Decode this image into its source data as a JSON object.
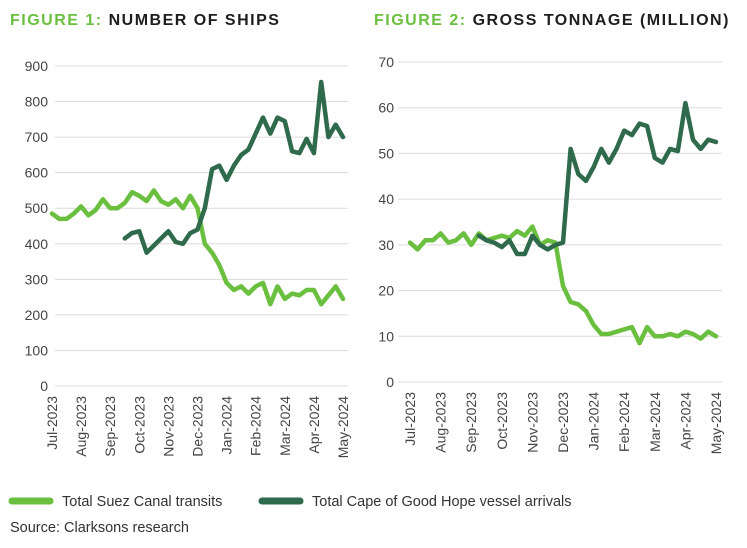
{
  "chart_data": [
    {
      "type": "line",
      "figure_label": "FIGURE 1:",
      "title": "NUMBER OF SHIPS",
      "categories": [
        "Jul-2023",
        null,
        null,
        null,
        "Aug-2023",
        null,
        null,
        null,
        "Sep-2023",
        null,
        null,
        null,
        "Oct-2023",
        null,
        null,
        null,
        "Nov-2023",
        null,
        null,
        null,
        "Dec-2023",
        null,
        null,
        null,
        "Jan-2024",
        null,
        null,
        null,
        "Feb-2024",
        null,
        null,
        null,
        "Mar-2024",
        null,
        null,
        null,
        "Apr-2024",
        null,
        null,
        null,
        "May-2024"
      ],
      "series": [
        {
          "name": "Total Suez Canal transits",
          "color": "#6abf3e",
          "values": [
            485,
            470,
            470,
            485,
            505,
            480,
            495,
            525,
            500,
            500,
            515,
            545,
            535,
            520,
            550,
            520,
            510,
            525,
            500,
            535,
            500,
            400,
            375,
            340,
            290,
            270,
            280,
            260,
            280,
            290,
            230,
            280,
            245,
            260,
            255,
            270,
            270,
            230,
            255,
            280,
            245
          ]
        },
        {
          "name": "Total Cape of Good Hope vessel arrivals",
          "color": "#2e6a4b",
          "values": [
            null,
            null,
            null,
            null,
            null,
            null,
            null,
            null,
            null,
            null,
            415,
            430,
            435,
            375,
            395,
            415,
            435,
            405,
            400,
            430,
            440,
            500,
            610,
            620,
            580,
            620,
            650,
            665,
            710,
            755,
            710,
            755,
            745,
            660,
            655,
            695,
            655,
            855,
            700,
            735,
            700
          ]
        }
      ],
      "ylim": [
        0,
        900
      ],
      "yticks": [
        0,
        100,
        200,
        300,
        400,
        500,
        600,
        700,
        800,
        900
      ],
      "grid": true
    },
    {
      "type": "line",
      "figure_label": "FIGURE 2:",
      "title": "GROSS TONNAGE (MILLION)",
      "categories": [
        "Jul-2023",
        null,
        null,
        null,
        "Aug-2023",
        null,
        null,
        null,
        "Sep-2023",
        null,
        null,
        null,
        "Oct-2023",
        null,
        null,
        null,
        "Nov-2023",
        null,
        null,
        null,
        "Dec-2023",
        null,
        null,
        null,
        "Jan-2024",
        null,
        null,
        null,
        "Feb-2024",
        null,
        null,
        null,
        "Mar-2024",
        null,
        null,
        null,
        "Apr-2024",
        null,
        null,
        null,
        "May-2024"
      ],
      "series": [
        {
          "name": "Total Suez Canal transits",
          "color": "#6abf3e",
          "values": [
            30.5,
            29,
            31,
            31,
            32.5,
            30.5,
            31,
            32.5,
            30,
            32.5,
            31,
            31.5,
            32,
            31.5,
            33,
            32,
            34,
            30,
            31,
            30.5,
            21,
            17.5,
            17,
            15.5,
            12.5,
            10.5,
            10.5,
            11,
            11.5,
            12,
            8.5,
            12,
            10,
            10,
            10.5,
            10,
            11,
            10.5,
            9.5,
            11,
            10
          ]
        },
        {
          "name": "Total Cape of Good Hope vessel arrivals",
          "color": "#2e6a4b",
          "values": [
            null,
            null,
            null,
            null,
            null,
            null,
            null,
            null,
            null,
            32,
            31,
            30.5,
            29.5,
            31,
            28,
            28,
            32,
            30,
            29,
            30,
            30.5,
            51,
            45.5,
            44,
            47,
            51,
            48,
            51,
            55,
            54,
            56.5,
            56,
            49,
            48,
            51,
            50.5,
            61,
            53,
            51,
            53,
            52.5
          ]
        }
      ],
      "ylim": [
        0,
        70
      ],
      "yticks": [
        0,
        10,
        20,
        30,
        40,
        50,
        60,
        70
      ],
      "grid": true
    }
  ],
  "source": "Source: Clarksons research"
}
